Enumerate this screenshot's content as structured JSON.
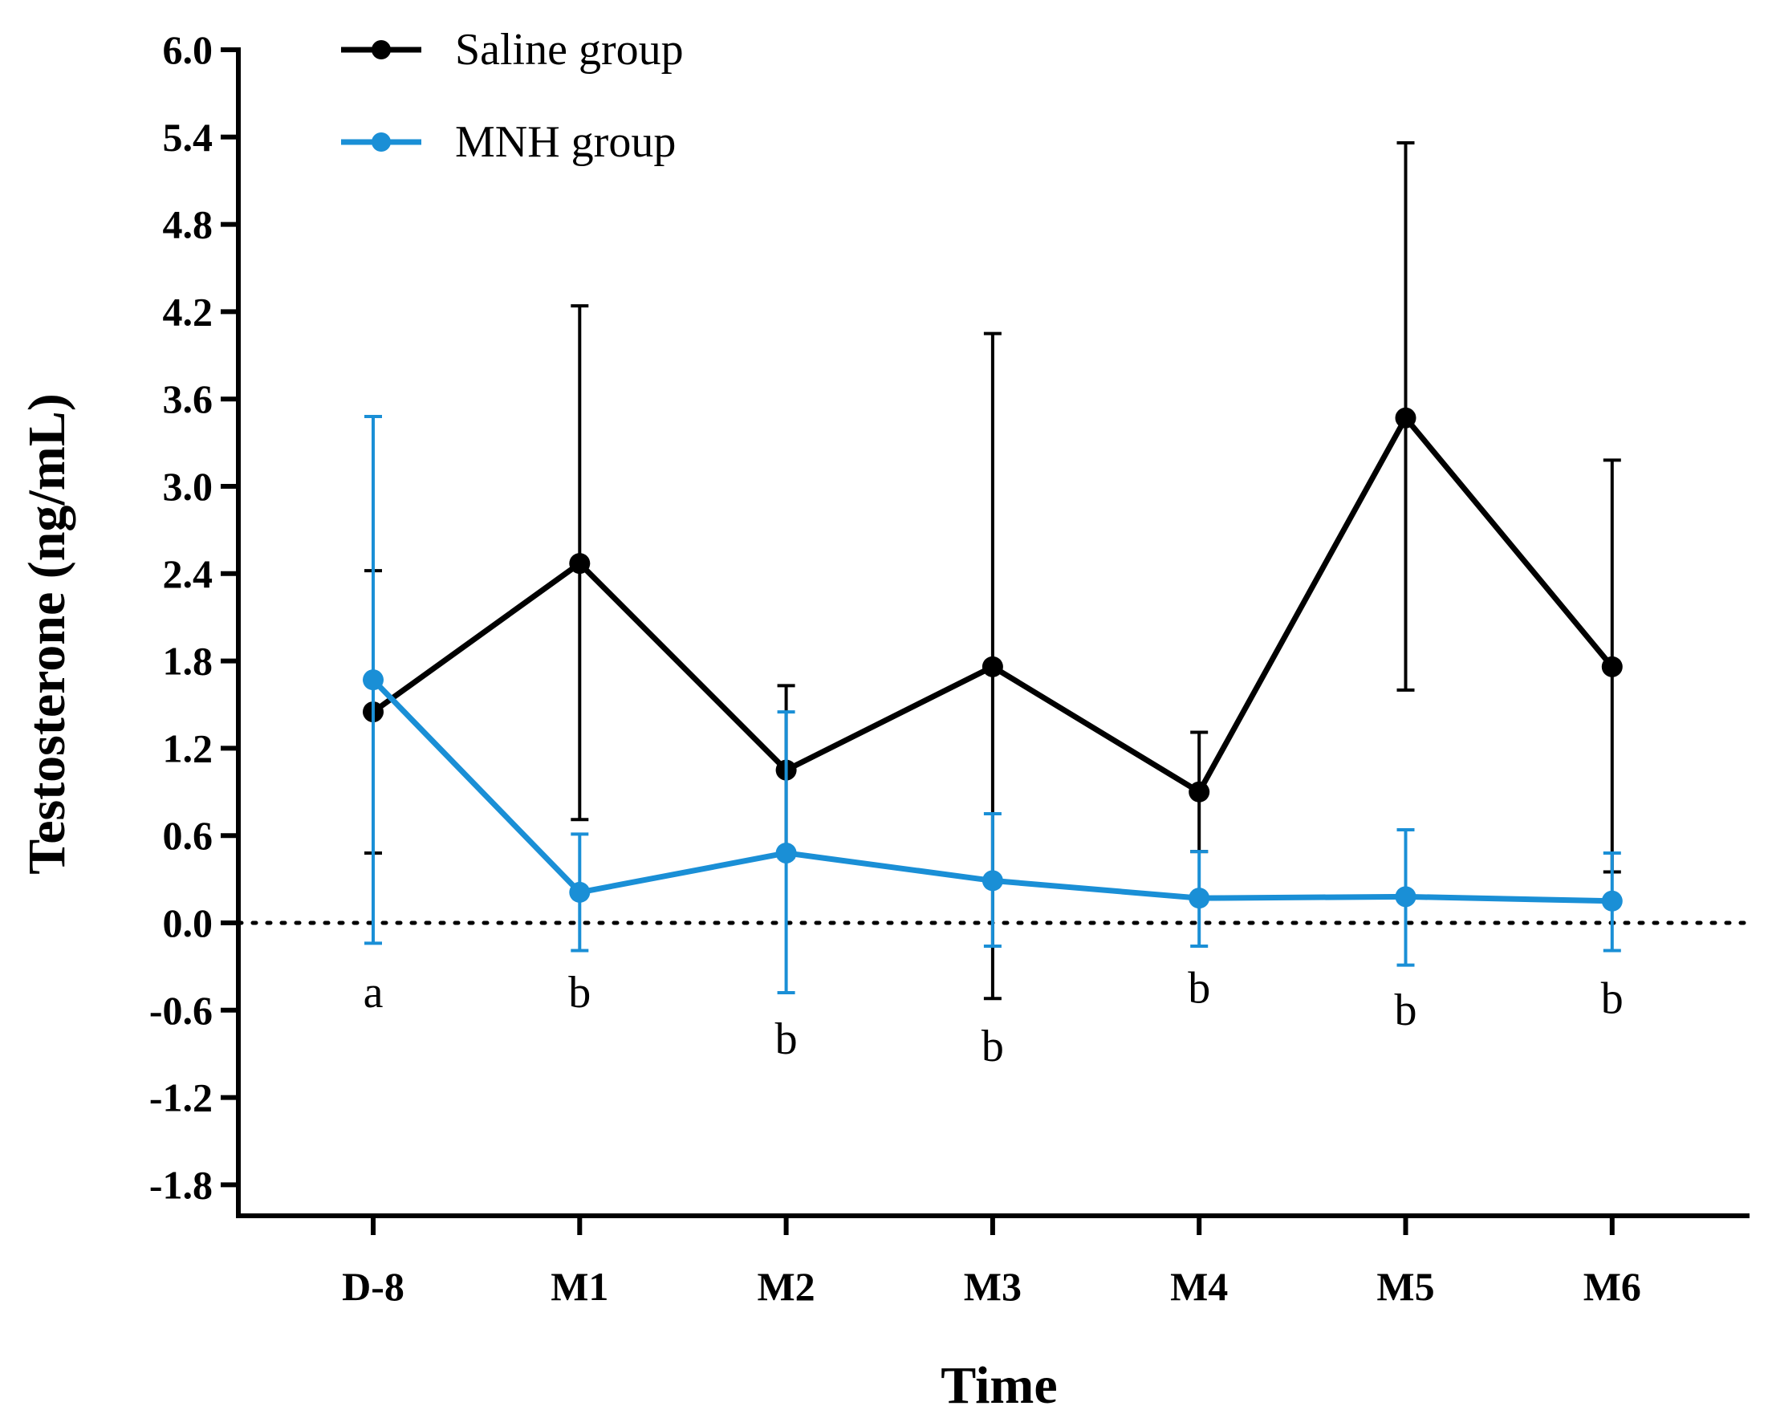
{
  "chart_data": {
    "type": "line",
    "title": "",
    "xlabel": "Time",
    "ylabel": "Testosterone (ng/mL)",
    "categories": [
      "D-8",
      "M1",
      "M2",
      "M3",
      "M4",
      "M5",
      "M6"
    ],
    "ylim": [
      -2.0,
      6.0
    ],
    "yticks": [
      -1.8,
      -1.2,
      -0.6,
      0.0,
      0.6,
      1.2,
      1.8,
      2.4,
      3.0,
      3.6,
      4.2,
      4.8,
      5.4,
      6.0
    ],
    "ytick_labels": [
      "-1.8",
      "-1.2",
      "-0.6",
      "0.0",
      "0.6",
      "1.2",
      "1.8",
      "2.4",
      "3.0",
      "3.6",
      "4.2",
      "4.8",
      "5.4",
      "6.0"
    ],
    "reference_line": {
      "y": 0.0,
      "style": "dotted"
    },
    "grid": false,
    "legend_position": "top-left",
    "series": [
      {
        "name": "Saline group",
        "color": "#000000",
        "values": [
          1.45,
          2.47,
          1.05,
          1.76,
          0.9,
          3.47,
          1.76
        ],
        "err_upper": [
          2.42,
          4.24,
          1.63,
          4.05,
          1.31,
          5.36,
          3.18
        ],
        "err_lower": [
          0.48,
          0.71,
          0.45,
          -0.52,
          0.49,
          1.6,
          0.35
        ]
      },
      {
        "name": "MNH group",
        "color": "#1a8fd6",
        "values": [
          1.67,
          0.21,
          0.48,
          0.29,
          0.17,
          0.18,
          0.15
        ],
        "err_upper": [
          3.48,
          0.61,
          1.45,
          0.75,
          0.49,
          0.64,
          0.48
        ],
        "err_lower": [
          -0.14,
          -0.19,
          -0.48,
          -0.16,
          -0.16,
          -0.29,
          -0.19
        ]
      }
    ],
    "annotations": [
      {
        "category": "D-8",
        "text": "a",
        "y": -0.48
      },
      {
        "category": "M1",
        "text": "b",
        "y": -0.48
      },
      {
        "category": "M2",
        "text": "b",
        "y": -0.8
      },
      {
        "category": "M3",
        "text": "b",
        "y": -0.85
      },
      {
        "category": "M4",
        "text": "b",
        "y": -0.45
      },
      {
        "category": "M5",
        "text": "b",
        "y": -0.6
      },
      {
        "category": "M6",
        "text": "b",
        "y": -0.52
      }
    ]
  }
}
